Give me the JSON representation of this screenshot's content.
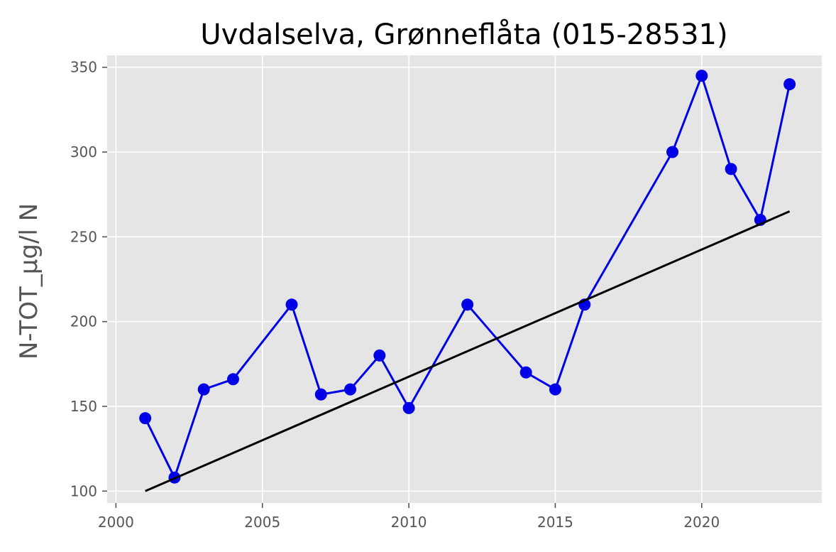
{
  "chart_data": {
    "type": "line",
    "title": "Uvdalselva, Grønneflåta (015-28531)",
    "xlabel": "",
    "ylabel": "N-TOT_µg/l N",
    "xlim": [
      1999.7,
      2024.1
    ],
    "ylim": [
      93,
      357
    ],
    "x_ticks": [
      2000,
      2005,
      2010,
      2015,
      2020
    ],
    "y_ticks": [
      100,
      150,
      200,
      250,
      300,
      350
    ],
    "grid": true,
    "legend": "none",
    "series": [
      {
        "x": [
          2001,
          2002,
          2003,
          2004,
          2006,
          2007,
          2008,
          2009,
          2010,
          2012,
          2014,
          2015,
          2016,
          2019,
          2020,
          2021,
          2022,
          2023
        ],
        "y": [
          143,
          108,
          160,
          166,
          210,
          157,
          160,
          180,
          149,
          210,
          170,
          160,
          210,
          300,
          345,
          290,
          260,
          340
        ],
        "color": "#0000e6",
        "style": "line-markers"
      },
      {
        "x": [
          2001,
          2023
        ],
        "y": [
          100,
          265
        ],
        "color": "#000000",
        "style": "line"
      }
    ],
    "colors": {
      "plot_background": "#e5e5e5",
      "grid": "#ffffff"
    }
  }
}
